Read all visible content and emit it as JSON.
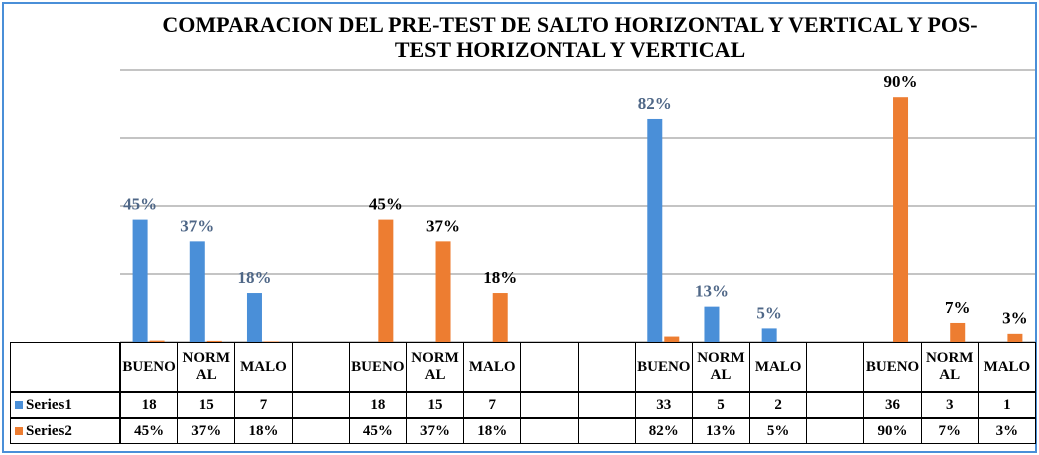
{
  "chart_data": {
    "type": "bar",
    "title": "COMPARACION DEL PRE-TEST DE SALTO HORIZONTAL Y VERTICAL Y POS-TEST HORIZONTAL Y VERTICAL",
    "categories": [
      "BUENO",
      "NORMAL",
      "MALO",
      null,
      "BUENO",
      "NORMAL",
      "MALO",
      null,
      null,
      "BUENO",
      "NORMAL",
      "MALO",
      null,
      "BUENO",
      "NORMAL",
      "MALO"
    ],
    "series": [
      {
        "name": "Series1",
        "color": "#4a8fd8",
        "values": [
          45,
          37,
          18,
          null,
          null,
          null,
          null,
          null,
          null,
          82,
          13,
          5,
          null,
          null,
          null,
          null
        ],
        "value_labels": [
          "45%",
          "37%",
          "18%",
          null,
          null,
          null,
          null,
          null,
          null,
          "82%",
          "13%",
          "5%",
          null,
          null,
          null,
          null
        ]
      },
      {
        "name": "Series2",
        "color": "#ed7d31",
        "values": [
          0.5,
          0.4,
          0.2,
          null,
          45,
          37,
          18,
          null,
          null,
          2,
          null,
          null,
          null,
          90,
          7,
          3
        ],
        "value_labels": [
          null,
          null,
          null,
          null,
          "45%",
          "37%",
          "18%",
          null,
          null,
          null,
          null,
          null,
          null,
          "90%",
          "7%",
          "3%"
        ]
      }
    ],
    "ylim": [
      0,
      100
    ],
    "yticks": [
      0,
      25,
      50,
      75,
      100
    ],
    "grid": true,
    "table": {
      "rows": [
        [
          "18",
          "15",
          "7",
          null,
          "18",
          "15",
          "7",
          null,
          null,
          "33",
          "5",
          "2",
          null,
          "36",
          "3",
          "1"
        ],
        [
          "45%",
          "37%",
          "18%",
          null,
          "45%",
          "37%",
          "18%",
          null,
          null,
          "82%",
          "13%",
          "5%",
          null,
          "90%",
          "7%",
          "3%"
        ]
      ]
    }
  }
}
